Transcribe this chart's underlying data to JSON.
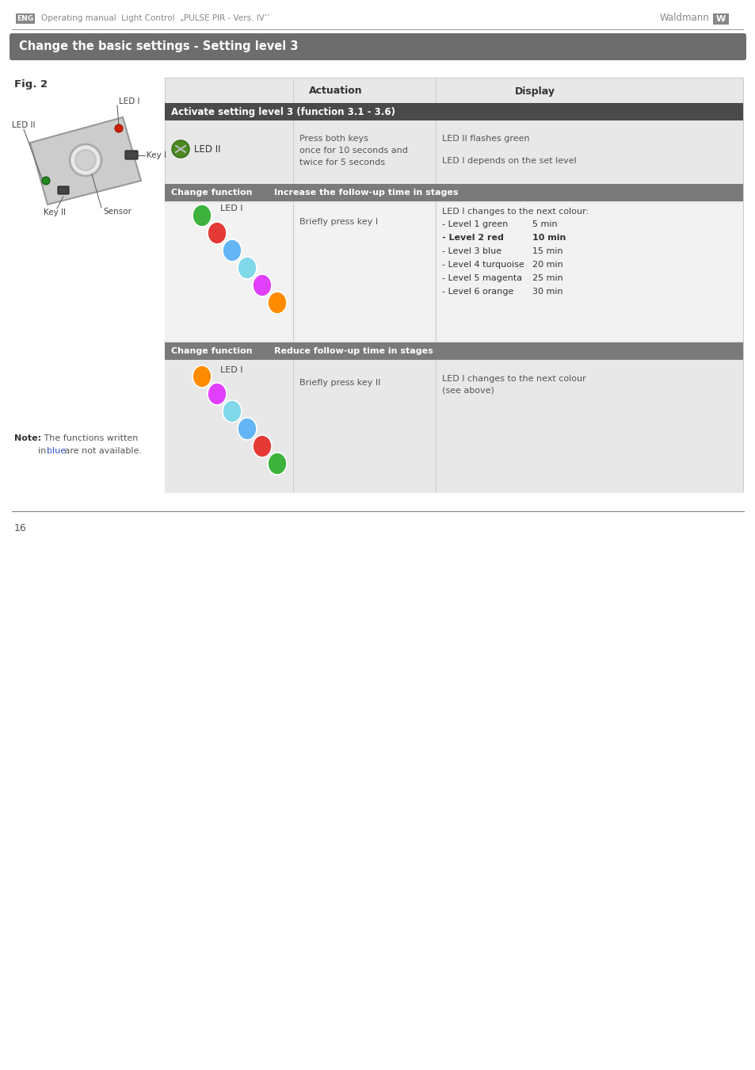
{
  "page_title": "Operating manual  Light Control  „PULSE PIR - Vers. IV’’",
  "brand": "Waldmann",
  "header_section_title": "Change the basic settings - Setting level 3",
  "section_bg": "#6d6d6d",
  "table_bg": "#e8e8e8",
  "table_header_bg": "#4a4a4a",
  "subsection_bg": "#7a7a7a",
  "activate_title": "Activate setting level 3 (function 3.1 - 3.6)",
  "col_actuation": "Actuation",
  "col_display": "Display",
  "led_ii_label": "LED II",
  "led_ii_actuation": "Press both keys\nonce for 10 seconds and\ntwice for 5 seconds",
  "led_ii_display1": "LED II flashes green",
  "led_ii_display2": "LED I depends on the set level",
  "increase_function": "Change function",
  "increase_title": "Increase the follow-up time in stages",
  "increase_actuation": "Briefly press key I",
  "increase_display_header": "LED I changes to the next colour:",
  "increase_levels": [
    {
      "label": "- Level 1 green",
      "time": "5 min",
      "bold": false
    },
    {
      "label": "- Level 2 red",
      "time": "10 min",
      "bold": true
    },
    {
      "label": "- Level 3 blue",
      "time": "15 min",
      "bold": false
    },
    {
      "label": "- Level 4 turquoise",
      "time": "20 min",
      "bold": false
    },
    {
      "label": "- Level 5 magenta",
      "time": "25 min",
      "bold": false
    },
    {
      "label": "- Level 6 orange",
      "time": "30 min",
      "bold": false
    }
  ],
  "increase_dots": [
    "#3db33d",
    "#e53935",
    "#64b5f6",
    "#80d8e8",
    "#e040fb",
    "#ff8c00"
  ],
  "reduce_function": "Change function",
  "reduce_title": "Reduce follow-up time in stages",
  "reduce_actuation": "Briefly press key II",
  "reduce_display": "LED I changes to the next colour\n(see above)",
  "reduce_dots": [
    "#ff8c00",
    "#e040fb",
    "#80d8e8",
    "#64b5f6",
    "#e53935",
    "#3db33d"
  ],
  "note_bold": "Note:",
  "note_text": " The functions written",
  "note_line2_pre": "in ",
  "note_blue": "blue",
  "note_line2_post": " are not available.",
  "page_num": "16",
  "eng_label": "ENG",
  "fig2_label": "Fig. 2",
  "led_i_label": "LED I",
  "led_ii_fig_label": "LED II",
  "key_i_label": "Key I",
  "key_ii_label": "Key II",
  "sensor_label": "Sensor"
}
